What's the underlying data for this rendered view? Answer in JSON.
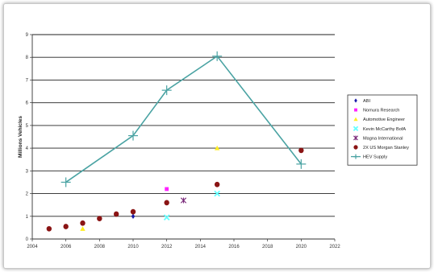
{
  "chart_data": {
    "type": "scatter",
    "title": "",
    "xlabel": "",
    "ylabel": "Millions Vehicles",
    "xlim": [
      2004,
      2022
    ],
    "ylim": [
      0,
      9
    ],
    "x_ticks": [
      "2004",
      "2006",
      "2008",
      "2010",
      "2012",
      "2014",
      "2016",
      "2018",
      "2020",
      "2022"
    ],
    "y_ticks": [
      "0",
      "1",
      "2",
      "3",
      "4",
      "5",
      "6",
      "7",
      "8",
      "9"
    ],
    "grid": "horizontal",
    "legend_position": "right",
    "series": [
      {
        "name": "ABI",
        "marker": "diamond",
        "color": "#1a1aa8",
        "points": [
          [
            2010,
            1.0
          ]
        ]
      },
      {
        "name": "Nomura Research",
        "marker": "square",
        "color": "#ff22ff",
        "points": [
          [
            2012,
            2.2
          ]
        ]
      },
      {
        "name": "Automotive Engineer",
        "marker": "triangle",
        "color": "#ffee22",
        "points": [
          [
            2007,
            0.45
          ],
          [
            2015,
            4.0
          ]
        ]
      },
      {
        "name": "Kevin McCarthy BofA",
        "marker": "x",
        "color": "#66ffff",
        "points": [
          [
            2012,
            0.95
          ],
          [
            2015,
            2.0
          ]
        ]
      },
      {
        "name": "Magna International",
        "marker": "star",
        "color": "#7a2a7a",
        "points": [
          [
            2013,
            1.7
          ]
        ]
      },
      {
        "name": "2X US Morgan Stanley",
        "marker": "circle",
        "color": "#8a1414",
        "points": [
          [
            2005,
            0.45
          ],
          [
            2006,
            0.55
          ],
          [
            2007,
            0.7
          ],
          [
            2008,
            0.9
          ],
          [
            2009,
            1.1
          ],
          [
            2010,
            1.2
          ],
          [
            2012,
            1.6
          ],
          [
            2015,
            2.4
          ],
          [
            2020,
            3.9
          ]
        ]
      },
      {
        "name": "HEV Supply",
        "marker": "plus-line",
        "color": "#4aa3a3",
        "points": [
          [
            2006,
            2.5
          ],
          [
            2010,
            4.55
          ],
          [
            2012,
            6.55
          ],
          [
            2015,
            8.05
          ],
          [
            2020,
            3.3
          ]
        ]
      }
    ]
  }
}
